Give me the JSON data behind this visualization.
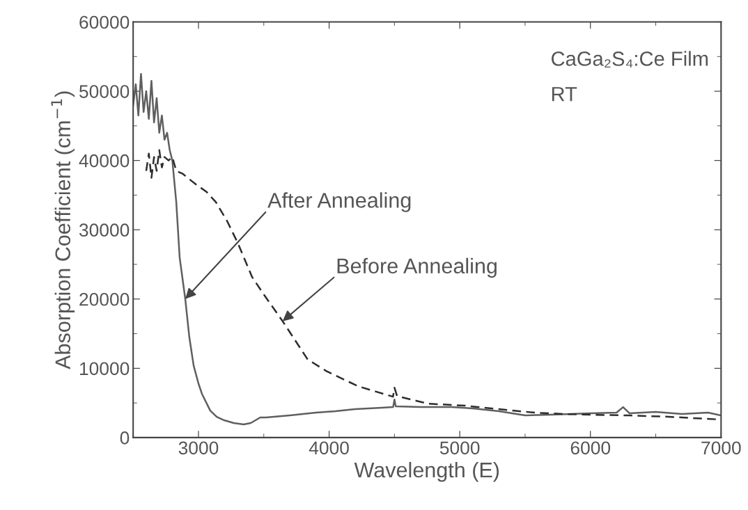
{
  "chart_data": {
    "type": "line",
    "xlabel": "Wavelength (E)",
    "ylabel": "Absorption Coefficient (cm$^{−1}$)",
    "xlim": [
      2500,
      7000
    ],
    "xticks": [
      3000,
      4000,
      5000,
      6000,
      7000
    ],
    "ylim": [
      0,
      60000
    ],
    "yticks": [
      0,
      10000,
      20000,
      30000,
      40000,
      50000,
      60000
    ],
    "grid": false,
    "series": [
      {
        "color": "#5f5f5f",
        "line_style": "solid",
        "x": [
          2500,
          2520,
          2540,
          2560,
          2580,
          2600,
          2620,
          2640,
          2660,
          2680,
          2700,
          2720,
          2740,
          2760,
          2780,
          2800,
          2830,
          2856,
          2899,
          2930,
          2963,
          3000,
          3027,
          3090,
          3140,
          3197,
          3270,
          3346,
          3400,
          3473,
          3516,
          3700,
          3900,
          4048,
          4200,
          4404,
          4490,
          4500,
          4510,
          4700,
          4936,
          5100,
          5300,
          5500,
          5700,
          6000,
          6200,
          6250,
          6300,
          6500,
          6700,
          6900,
          7000
        ],
        "values": [
          48000,
          51000,
          46500,
          52500,
          47000,
          50000,
          46000,
          51500,
          45500,
          49000,
          44000,
          46500,
          43000,
          44000,
          41500,
          40000,
          34000,
          26000,
          20000,
          14500,
          10400,
          7800,
          6300,
          3900,
          3000,
          2500,
          2100,
          1900,
          2100,
          2900,
          2900,
          3200,
          3600,
          3800,
          4100,
          4300,
          4400,
          5500,
          4500,
          4400,
          4400,
          4200,
          3800,
          3200,
          3300,
          3500,
          3600,
          4400,
          3500,
          3700,
          3400,
          3600,
          3200
        ]
      },
      {
        "color": "#2e2e2e",
        "line_style": "dashed",
        "x": [
          2600,
          2620,
          2640,
          2660,
          2680,
          2700,
          2720,
          2740,
          2771,
          2800,
          2830,
          2878,
          2930,
          2984,
          3060,
          3133,
          3218,
          3303,
          3410,
          3495,
          3644,
          3835,
          3979,
          4223,
          4489,
          4500,
          4520,
          4755,
          5043,
          5300,
          5574,
          5800,
          6000,
          6300,
          6600,
          6900,
          7000
        ],
        "values": [
          38500,
          41000,
          37500,
          40500,
          38500,
          41500,
          39000,
          40500,
          40000,
          40500,
          38500,
          38100,
          37300,
          36500,
          35500,
          34000,
          31300,
          28000,
          23200,
          20800,
          16800,
          11300,
          9600,
          7400,
          5900,
          7200,
          6000,
          4900,
          4600,
          4100,
          3600,
          3400,
          3300,
          3200,
          3000,
          2700,
          2600
        ]
      }
    ],
    "annotations": [
      {
        "text": "After Annealing",
        "x": 2899,
        "y": 20000
      },
      {
        "text": "Before Annealing",
        "x": 3644,
        "y": 16800
      },
      "CaGa₂S₄:Ce Film",
      "RT"
    ]
  }
}
